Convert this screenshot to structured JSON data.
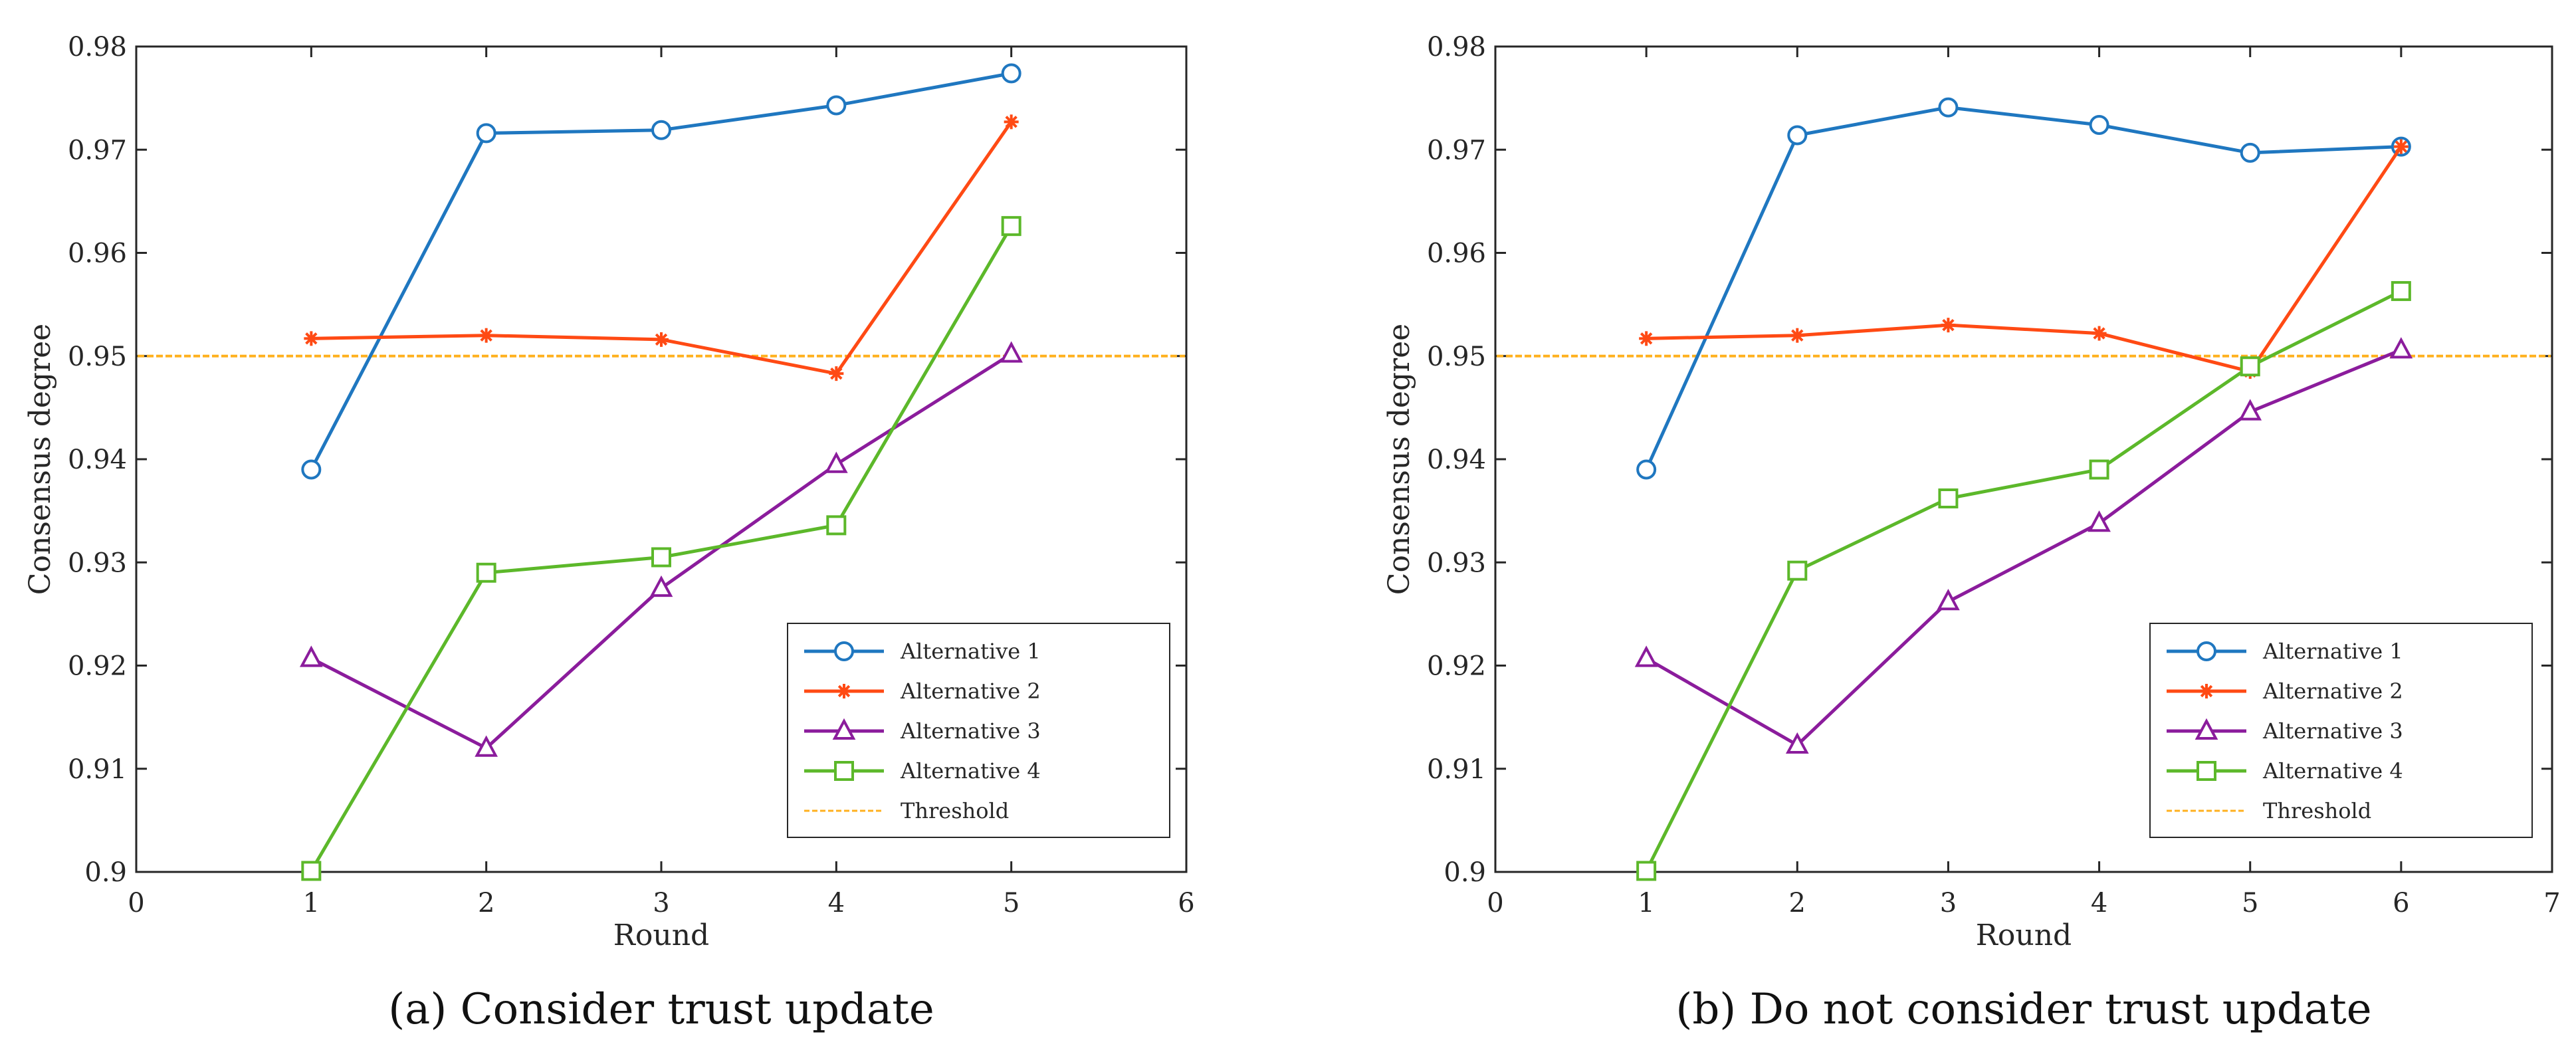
{
  "chart_data": [
    {
      "type": "line",
      "caption": "(a) Consider trust update",
      "xlabel": "Round",
      "ylabel": "Consensus degree",
      "xlim": [
        0,
        6
      ],
      "ylim": [
        0.9,
        0.98
      ],
      "xticks": [
        0,
        1,
        2,
        3,
        4,
        5,
        6
      ],
      "yticks": [
        0.9,
        0.91,
        0.92,
        0.93,
        0.94,
        0.95,
        0.96,
        0.97,
        0.98
      ],
      "ytick_labels": [
        "0.9",
        "0.91",
        "0.92",
        "0.93",
        "0.94",
        "0.95",
        "0.96",
        "0.97",
        "0.98"
      ],
      "grid": false,
      "legend_position": "bottom-right",
      "x": [
        1,
        2,
        3,
        4,
        5
      ],
      "series": [
        {
          "name": "Alternative 1",
          "color": "#1f77c0",
          "marker": "circle",
          "values": [
            0.939,
            0.9716,
            0.9719,
            0.9743,
            0.9774
          ]
        },
        {
          "name": "Alternative 2",
          "color": "#ff4a14",
          "marker": "star",
          "values": [
            0.9517,
            0.952,
            0.9516,
            0.9483,
            0.9727
          ]
        },
        {
          "name": "Alternative 3",
          "color": "#8b1c9c",
          "marker": "triangle",
          "values": [
            0.9207,
            0.912,
            0.9275,
            0.9395,
            0.9502
          ]
        },
        {
          "name": "Alternative 4",
          "color": "#5cb82a",
          "marker": "square",
          "values": [
            0.9001,
            0.929,
            0.9305,
            0.9336,
            0.9626
          ]
        }
      ],
      "threshold": {
        "name": "Threshold",
        "value": 0.95,
        "color": "#ffb11f"
      }
    },
    {
      "type": "line",
      "caption": "(b) Do not consider trust update",
      "xlabel": "Round",
      "ylabel": "Consensus degree",
      "xlim": [
        0,
        7
      ],
      "ylim": [
        0.9,
        0.98
      ],
      "xticks": [
        0,
        1,
        2,
        3,
        4,
        5,
        6,
        7
      ],
      "yticks": [
        0.9,
        0.91,
        0.92,
        0.93,
        0.94,
        0.95,
        0.96,
        0.97,
        0.98
      ],
      "ytick_labels": [
        "0.9",
        "0.91",
        "0.92",
        "0.93",
        "0.94",
        "0.95",
        "0.96",
        "0.97",
        "0.98"
      ],
      "grid": false,
      "legend_position": "bottom-right",
      "x": [
        1,
        2,
        3,
        4,
        5,
        6
      ],
      "series": [
        {
          "name": "Alternative 1",
          "color": "#1f77c0",
          "marker": "circle",
          "values": [
            0.939,
            0.9714,
            0.9741,
            0.9724,
            0.9697,
            0.9703
          ]
        },
        {
          "name": "Alternative 2",
          "color": "#ff4a14",
          "marker": "star",
          "values": [
            0.9517,
            0.952,
            0.953,
            0.9522,
            0.9485,
            0.9703
          ]
        },
        {
          "name": "Alternative 3",
          "color": "#8b1c9c",
          "marker": "triangle",
          "values": [
            0.9207,
            0.9123,
            0.9262,
            0.9338,
            0.9446,
            0.9506
          ]
        },
        {
          "name": "Alternative 4",
          "color": "#5cb82a",
          "marker": "square",
          "values": [
            0.9001,
            0.9292,
            0.9362,
            0.939,
            0.949,
            0.9563
          ]
        }
      ],
      "threshold": {
        "name": "Threshold",
        "value": 0.95,
        "color": "#ffb11f"
      }
    }
  ]
}
